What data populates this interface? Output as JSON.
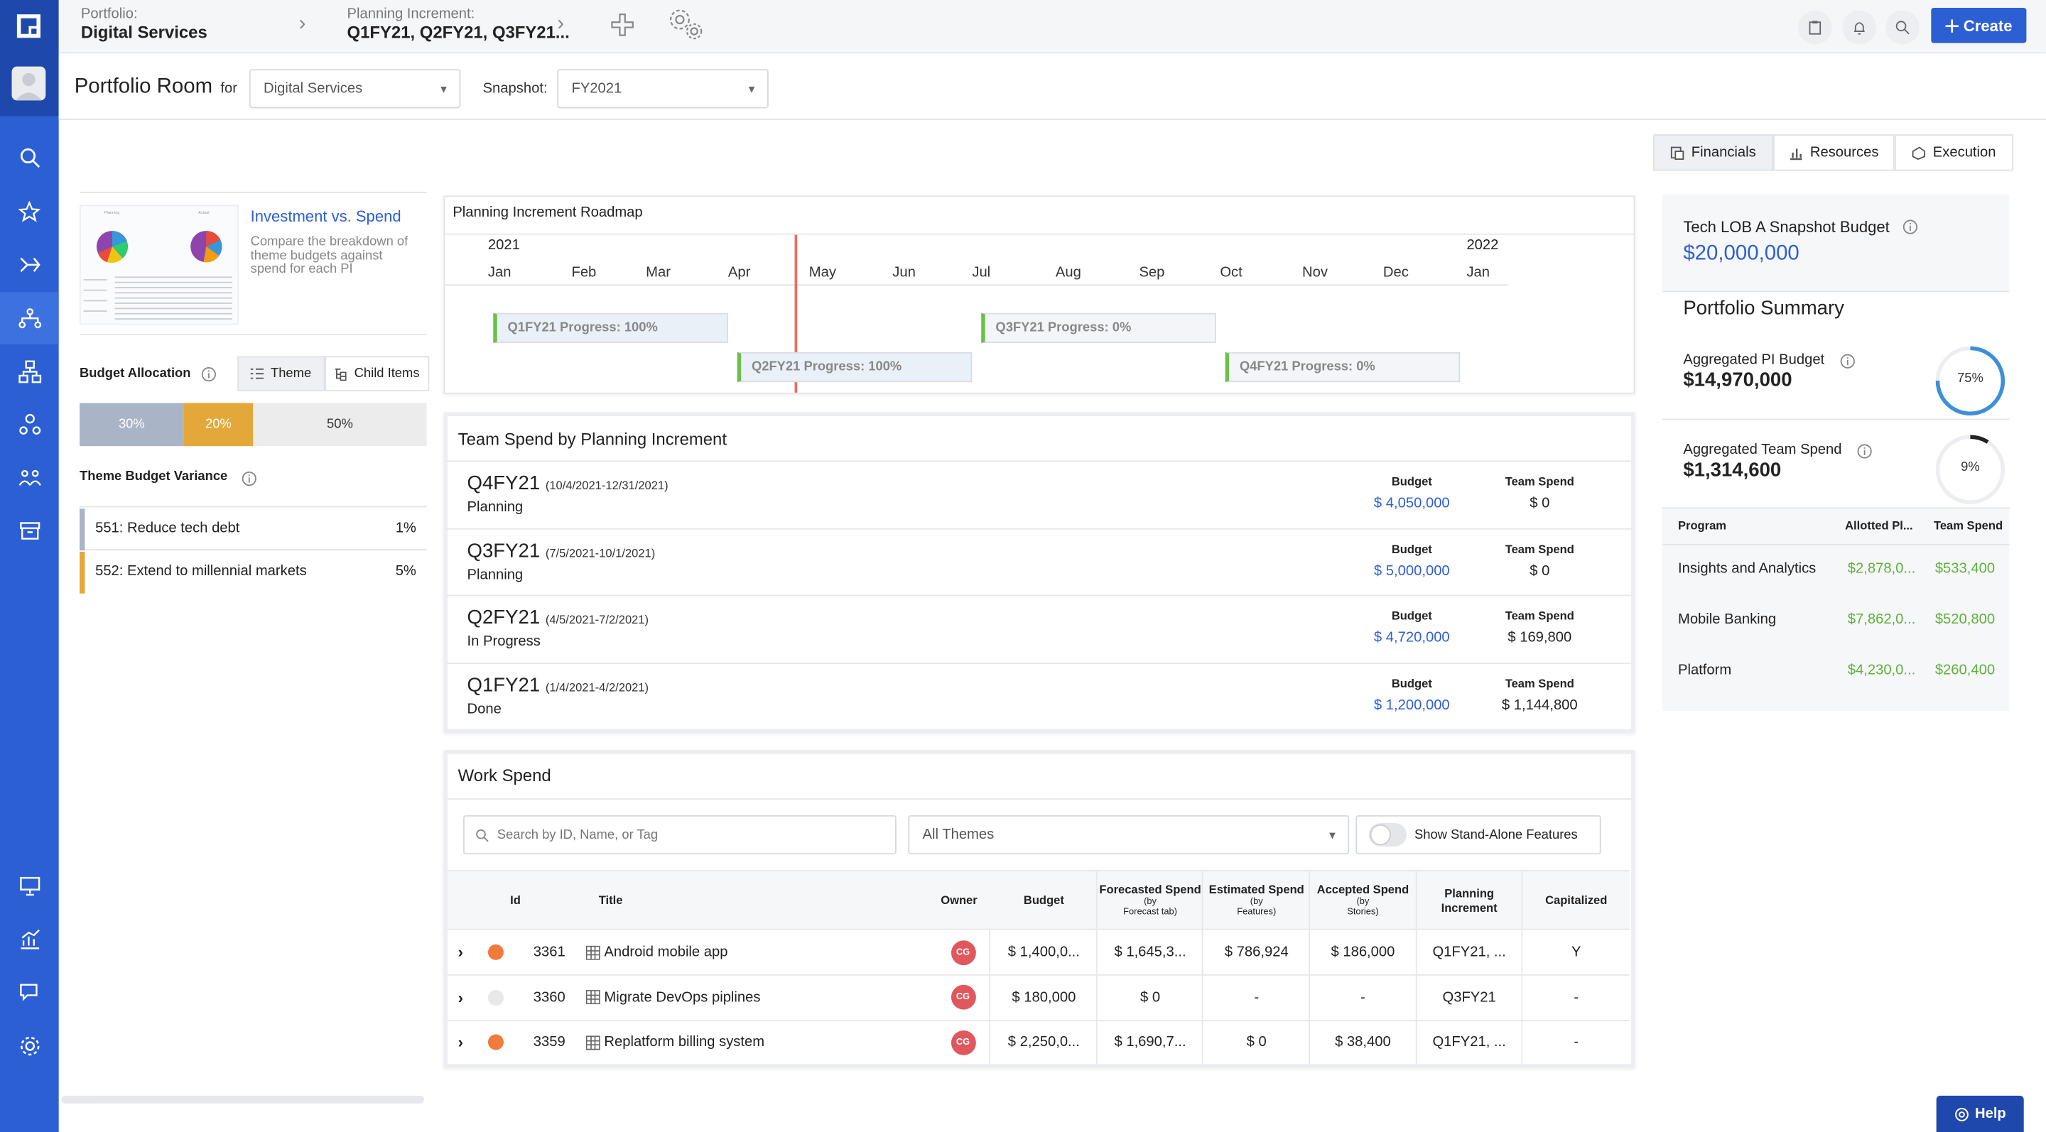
{
  "topbar": {
    "portfolio_label": "Portfolio:",
    "portfolio_value": "Digital Services",
    "pi_label": "Planning Increment:",
    "pi_value": "Q1FY21, Q2FY21, Q3FY21...",
    "create_label": "Create"
  },
  "header": {
    "title": "Portfolio Room",
    "for_label": "for",
    "portfolio_select": "Digital Services",
    "snapshot_label": "Snapshot:",
    "snapshot_select": "FY2021"
  },
  "tabs": [
    {
      "label": "Financials",
      "icon": "financials-icon"
    },
    {
      "label": "Resources",
      "icon": "bar-chart-icon"
    },
    {
      "label": "Execution",
      "icon": "execution-icon"
    }
  ],
  "left": {
    "card_title": "Investment vs. Spend",
    "card_desc": "Compare the breakdown of theme budgets against spend for each PI",
    "budget_allocation_label": "Budget Allocation",
    "toggle_theme": "Theme",
    "toggle_child": "Child Items",
    "allocation": [
      {
        "label": "30%",
        "value": 30,
        "color": "#a9b4c6"
      },
      {
        "label": "20%",
        "value": 20,
        "color": "#e4a83a"
      },
      {
        "label": "50%",
        "value": 50,
        "color": "#ececec"
      }
    ],
    "variance_label": "Theme Budget Variance",
    "variance": [
      {
        "name": "551: Reduce tech debt",
        "pct": "1%",
        "color": "#a9b4c6"
      },
      {
        "name": "552: Extend to millennial markets",
        "pct": "5%",
        "color": "#e4a83a"
      }
    ]
  },
  "roadmap": {
    "title": "Planning Increment Roadmap",
    "year_start": "2021",
    "year_end": "2022",
    "months": [
      "Jan",
      "Feb",
      "Mar",
      "Apr",
      "May",
      "Jun",
      "Jul",
      "Aug",
      "Sep",
      "Oct",
      "Nov",
      "Dec",
      "Jan"
    ],
    "bars": [
      {
        "label": "Q1FY21 Progress: 100%",
        "progress": 1.0
      },
      {
        "label": "Q2FY21 Progress: 100%",
        "progress": 1.0
      },
      {
        "label": "Q3FY21 Progress: 0%",
        "progress": 0
      },
      {
        "label": "Q4FY21 Progress: 0%",
        "progress": 0
      }
    ]
  },
  "team_spend": {
    "title": "Team Spend by Planning Increment",
    "budget_header": "Budget",
    "spend_header": "Team Spend",
    "rows": [
      {
        "name": "Q4FY21",
        "dates": "(10/4/2021-12/31/2021)",
        "status": "Planning",
        "budget": "$ 4,050,000",
        "spend": "$ 0"
      },
      {
        "name": "Q3FY21",
        "dates": "(7/5/2021-10/1/2021)",
        "status": "Planning",
        "budget": "$ 5,000,000",
        "spend": "$ 0"
      },
      {
        "name": "Q2FY21",
        "dates": "(4/5/2021-7/2/2021)",
        "status": "In Progress",
        "budget": "$ 4,720,000",
        "spend": "$ 169,800"
      },
      {
        "name": "Q1FY21",
        "dates": "(1/4/2021-4/2/2021)",
        "status": "Done",
        "budget": "$ 1,200,000",
        "spend": "$ 1,144,800"
      }
    ]
  },
  "work_spend": {
    "title": "Work Spend",
    "search_placeholder": "Search by ID, Name, or Tag",
    "themes_select": "All Themes",
    "standalone_label": "Show Stand-Alone Features",
    "columns": {
      "id": "Id",
      "title": "Title",
      "owner": "Owner",
      "budget": "Budget",
      "forecasted": "Forecasted Spend",
      "forecasted_sub1": "(by",
      "forecasted_sub2": "Forecast tab)",
      "estimated": "Estimated Spend",
      "estimated_sub1": "(by",
      "estimated_sub2": "Features)",
      "accepted": "Accepted Spend",
      "accepted_sub1": "(by",
      "accepted_sub2": "Stories)",
      "pi": "Planning Increment",
      "capitalized": "Capitalized"
    },
    "rows": [
      {
        "dot": "#ef7b3d",
        "id": "3361",
        "title": "Android mobile app",
        "owner": "CG",
        "budget": "$ 1,400,0...",
        "forecasted": "$ 1,645,3...",
        "estimated": "$ 786,924",
        "accepted": "$ 186,000",
        "pi": "Q1FY21, ...",
        "cap": "Y"
      },
      {
        "dot": "#e8e8e8",
        "id": "3360",
        "title": "Migrate DevOps piplines",
        "owner": "CG",
        "budget": "$ 180,000",
        "forecasted": "$ 0",
        "estimated": "-",
        "accepted": "-",
        "pi": "Q3FY21",
        "cap": "-"
      },
      {
        "dot": "#ef7b3d",
        "id": "3359",
        "title": "Replatform billing system",
        "owner": "CG",
        "budget": "$ 2,250,0...",
        "forecasted": "$ 1,690,7...",
        "estimated": "$ 0",
        "accepted": "$ 38,400",
        "pi": "Q1FY21, ...",
        "cap": "-"
      }
    ]
  },
  "summary": {
    "snapshot_budget_label": "Tech LOB A Snapshot Budget",
    "snapshot_budget_value": "$20,000,000",
    "title": "Portfolio Summary",
    "pi_budget_label": "Aggregated PI Budget",
    "pi_budget_value": "$14,970,000",
    "pi_budget_pct": "75%",
    "pi_budget_fraction": 0.75,
    "team_spend_label": "Aggregated Team Spend",
    "team_spend_value": "$1,314,600",
    "team_spend_pct": "9%",
    "team_spend_fraction": 0.09,
    "col_program": "Program",
    "col_allotted": "Allotted Pl...",
    "col_spend": "Team Spend",
    "programs": [
      {
        "name": "Insights and Analytics",
        "allotted": "$2,878,0...",
        "spend": "$533,400"
      },
      {
        "name": "Mobile Banking",
        "allotted": "$7,862,0...",
        "spend": "$520,800"
      },
      {
        "name": "Platform",
        "allotted": "$4,230,0...",
        "spend": "$260,400"
      }
    ]
  },
  "help_label": "Help"
}
